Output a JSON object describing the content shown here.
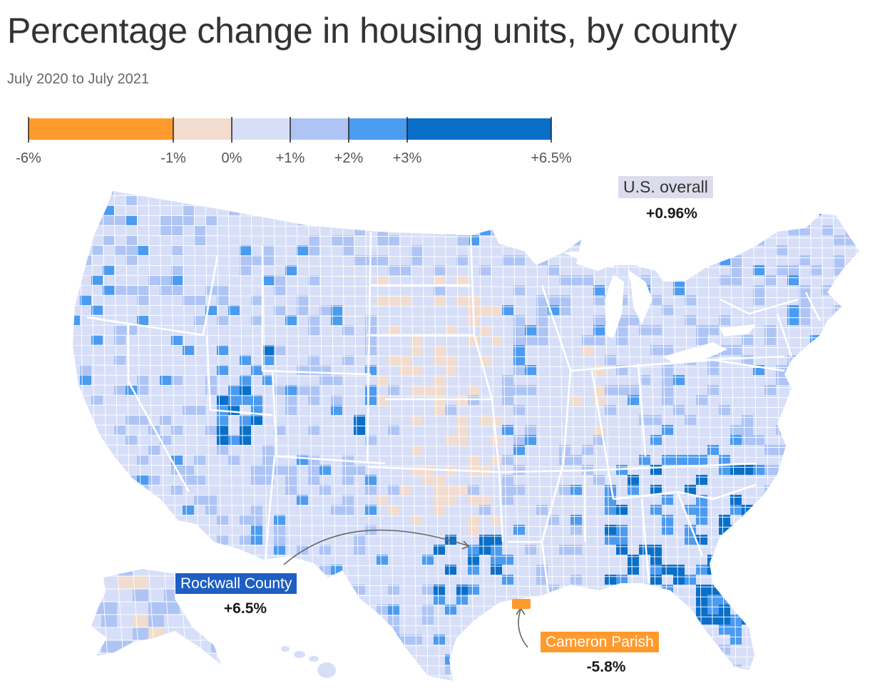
{
  "header": {
    "title": "Percentage change in housing units, by county",
    "subtitle": "July 2020 to July 2021"
  },
  "legend": {
    "breaks": [
      -6,
      -1,
      0,
      1,
      2,
      3,
      6.5
    ],
    "labels": [
      "-6%",
      "-1%",
      "0%",
      "+1%",
      "+2%",
      "+3%",
      "+6.5%"
    ],
    "colors": [
      "#ff9a2d",
      "#f2dccf",
      "#d7dff8",
      "#adc4f5",
      "#4b9bf0",
      "#0a6fc8"
    ]
  },
  "annotations": {
    "us_overall": {
      "label": "U.S. overall",
      "value": "+0.96%",
      "color": "#dcdcec"
    },
    "rockwall": {
      "label": "Rockwall County",
      "value": "+6.5%",
      "color": "#1f5fc2"
    },
    "cameron": {
      "label": "Cameron Parish",
      "value": "-5.8%",
      "color": "#ff9a2d"
    }
  },
  "chart_data": {
    "type": "choropleth",
    "title": "Percentage change in housing units, by county",
    "subtitle": "July 2020 to July 2021",
    "color_scale": {
      "breaks": [
        -6,
        -1,
        0,
        1,
        2,
        3,
        6.5
      ],
      "colors": [
        "#ff9a2d",
        "#f2dccf",
        "#d7dff8",
        "#adc4f5",
        "#4b9bf0",
        "#0a6fc8"
      ]
    },
    "summary": {
      "U.S. overall": 0.96
    },
    "highlighted": [
      {
        "name": "Rockwall County",
        "value": 6.5
      },
      {
        "name": "Cameron Parish",
        "value": -5.8
      }
    ]
  }
}
